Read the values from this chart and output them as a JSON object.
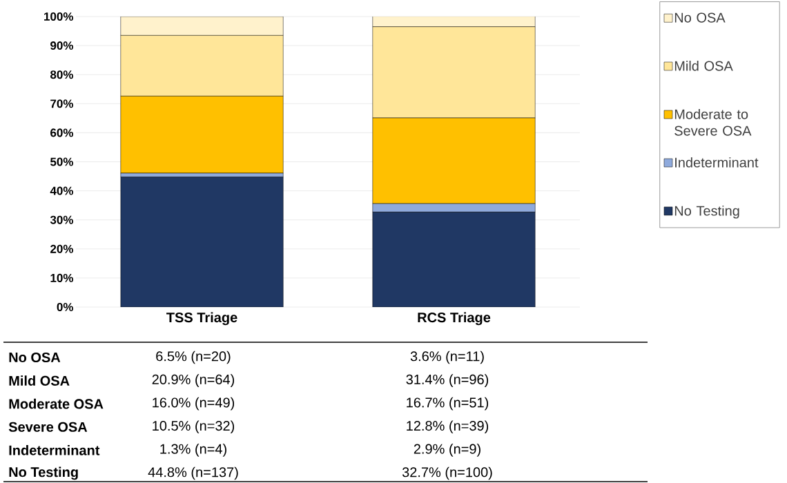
{
  "chart_data": {
    "type": "bar",
    "stacked": true,
    "categories": [
      "TSS Triage",
      "RCS Triage"
    ],
    "series": [
      {
        "name": "No Testing",
        "color": "#203864",
        "values": [
          44.8,
          32.7
        ]
      },
      {
        "name": "Indeterminant",
        "color": "#8faadc",
        "values": [
          1.3,
          2.9
        ]
      },
      {
        "name": "Moderate to Severe OSA",
        "color": "#ffc000",
        "values": [
          26.5,
          29.5
        ]
      },
      {
        "name": "Mild OSA",
        "color": "#ffe699",
        "values": [
          20.9,
          31.4
        ]
      },
      {
        "name": "No OSA",
        "color": "#fff2cc",
        "values": [
          6.5,
          3.6
        ]
      }
    ],
    "ylim": [
      0,
      100
    ],
    "yticks": [
      {
        "value": 0,
        "label": "0%"
      },
      {
        "value": 10,
        "label": "10%"
      },
      {
        "value": 20,
        "label": "20%"
      },
      {
        "value": 30,
        "label": "30%"
      },
      {
        "value": 40,
        "label": "40%"
      },
      {
        "value": 50,
        "label": "50%"
      },
      {
        "value": 60,
        "label": "60%"
      },
      {
        "value": 70,
        "label": "70%"
      },
      {
        "value": 80,
        "label": "80%"
      },
      {
        "value": 90,
        "label": "90%"
      },
      {
        "value": 100,
        "label": "100%"
      }
    ],
    "grid": "y",
    "legend": "right",
    "annotations": [
      "No OSA",
      "6.5% (n=20)",
      "3.6% (n=11)",
      "Mild OSA",
      "20.9% (n=64)",
      "31.4% (n=96)",
      "Moderate OSA",
      "16.0% (n=49)",
      "16.7% (n=51)",
      "Severe OSA",
      "10.5% (n=32)",
      "12.8% (n=39)",
      "Indeterminant",
      "1.3% (n=4)",
      "2.9% (n=9)",
      "No Testing",
      "44.8% (n=137)",
      "32.7% (n=100)"
    ]
  }
}
